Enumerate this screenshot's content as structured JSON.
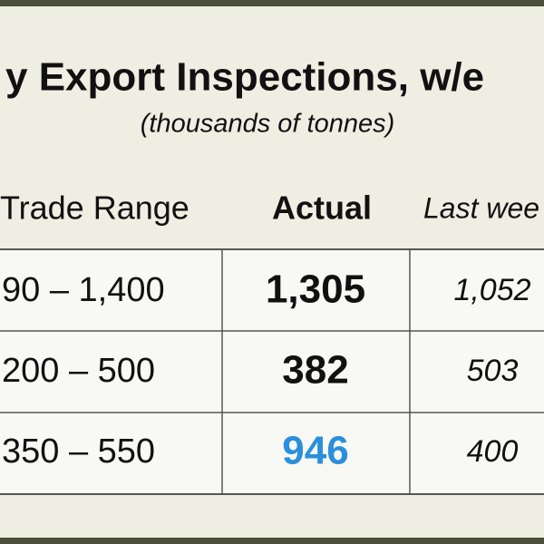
{
  "header": {
    "title": "y Export Inspections, w/e",
    "subtitle": "(thousands of tonnes)"
  },
  "table": {
    "columns": [
      "Trade Range",
      "Actual",
      "Last wee"
    ],
    "rows": [
      [
        "90 – 1,400",
        "1,305",
        "1,052"
      ],
      [
        "200 – 500",
        "382",
        "503"
      ],
      [
        "350 – 550",
        "946",
        "400"
      ]
    ]
  }
}
